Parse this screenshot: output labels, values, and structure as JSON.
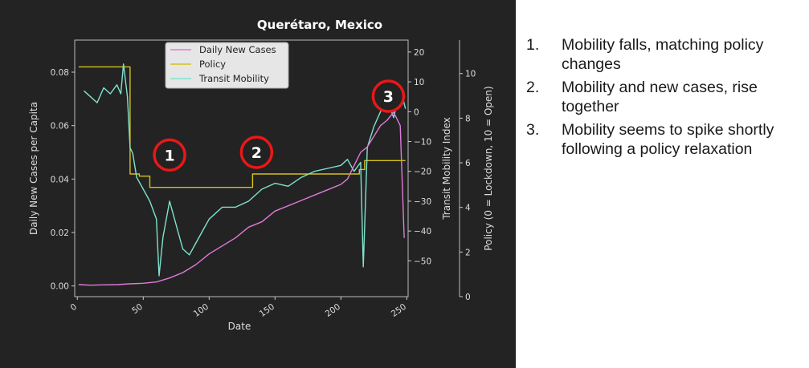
{
  "chart_data": {
    "type": "line",
    "title": "Querétaro, Mexico",
    "xlabel": "Date",
    "ylabel_left": "Daily New Cases per Capita",
    "ylabel_right_1": "Transit Mobility Index",
    "ylabel_right_2": "Policy (0 = Lockdown, 10 = Open)",
    "xlim": [
      -2,
      251
    ],
    "ylim_left": [
      -0.004,
      0.092
    ],
    "ylim_mobility": [
      -62,
      24
    ],
    "ylim_policy": [
      0,
      11.5
    ],
    "x_ticks": [
      0,
      50,
      100,
      150,
      200,
      250
    ],
    "y_ticks_left": [
      "0.00",
      "0.02",
      "0.04",
      "0.06",
      "0.08"
    ],
    "y_ticks_mobility": [
      -50,
      -40,
      -30,
      -20,
      -10,
      0,
      10,
      20
    ],
    "y_ticks_policy": [
      0,
      2,
      4,
      6,
      8,
      10
    ],
    "legend_position": "top-center",
    "legend": [
      {
        "name": "Daily New Cases",
        "color": "#e07ad8"
      },
      {
        "name": "Policy",
        "color": "#d4c21a"
      },
      {
        "name": "Transit Mobility",
        "color": "#7fe3cd"
      }
    ],
    "series": [
      {
        "name": "Policy",
        "axis": "policy",
        "color": "#d4c21a",
        "x": [
          1,
          40,
          40,
          47,
          47,
          55,
          55,
          133,
          133,
          214,
          214,
          218,
          218,
          249
        ],
        "y": [
          10.3,
          10.3,
          5.5,
          5.5,
          5.4,
          5.4,
          4.9,
          4.9,
          5.5,
          5.5,
          5.7,
          5.7,
          6.1,
          6.1
        ]
      },
      {
        "name": "Transit Mobility",
        "axis": "mobility",
        "color": "#7fe3cd",
        "x": [
          5,
          10,
          15,
          20,
          25,
          30,
          33,
          35,
          38,
          40,
          42,
          45,
          50,
          55,
          60,
          62,
          65,
          70,
          75,
          80,
          85,
          90,
          95,
          100,
          110,
          120,
          130,
          140,
          150,
          160,
          170,
          180,
          190,
          200,
          205,
          210,
          215,
          217,
          220,
          225,
          230,
          235,
          240,
          245,
          249
        ],
        "y": [
          7,
          5,
          3,
          8,
          6,
          9,
          6,
          16,
          5,
          -12,
          -14,
          -22,
          -26,
          -30,
          -36,
          -55,
          -42,
          -30,
          -38,
          -46,
          -48,
          -44,
          -40,
          -36,
          -32,
          -32,
          -30,
          -26,
          -24,
          -25,
          -22,
          -20,
          -19,
          -18,
          -16,
          -20,
          -17,
          -52,
          -12,
          -5,
          0,
          4,
          -2,
          8,
          1
        ]
      },
      {
        "name": "Daily New Cases",
        "axis": "left",
        "color": "#e07ad8",
        "x": [
          1,
          10,
          20,
          30,
          40,
          50,
          60,
          70,
          80,
          90,
          100,
          110,
          120,
          130,
          140,
          150,
          160,
          170,
          180,
          190,
          200,
          205,
          210,
          215,
          220,
          225,
          230,
          235,
          240,
          245,
          248
        ],
        "y": [
          0.0005,
          0.0003,
          0.0004,
          0.0005,
          0.0008,
          0.001,
          0.0015,
          0.003,
          0.005,
          0.008,
          0.012,
          0.015,
          0.018,
          0.022,
          0.024,
          0.028,
          0.03,
          0.032,
          0.034,
          0.036,
          0.038,
          0.04,
          0.045,
          0.05,
          0.052,
          0.056,
          0.06,
          0.062,
          0.065,
          0.06,
          0.018
        ]
      }
    ],
    "annotations": [
      {
        "label": "1",
        "x": 70,
        "y": 0.049
      },
      {
        "label": "2",
        "x": 136,
        "y": 0.05
      },
      {
        "label": "3",
        "x": 236,
        "y": 0.071
      }
    ]
  },
  "notes": [
    {
      "num": "1.",
      "text": "Mobility falls, matching policy changes"
    },
    {
      "num": "2.",
      "text": "Mobility and new cases, rise together"
    },
    {
      "num": "3.",
      "text": "Mobility seems to spike shortly following a policy relaxation"
    }
  ]
}
